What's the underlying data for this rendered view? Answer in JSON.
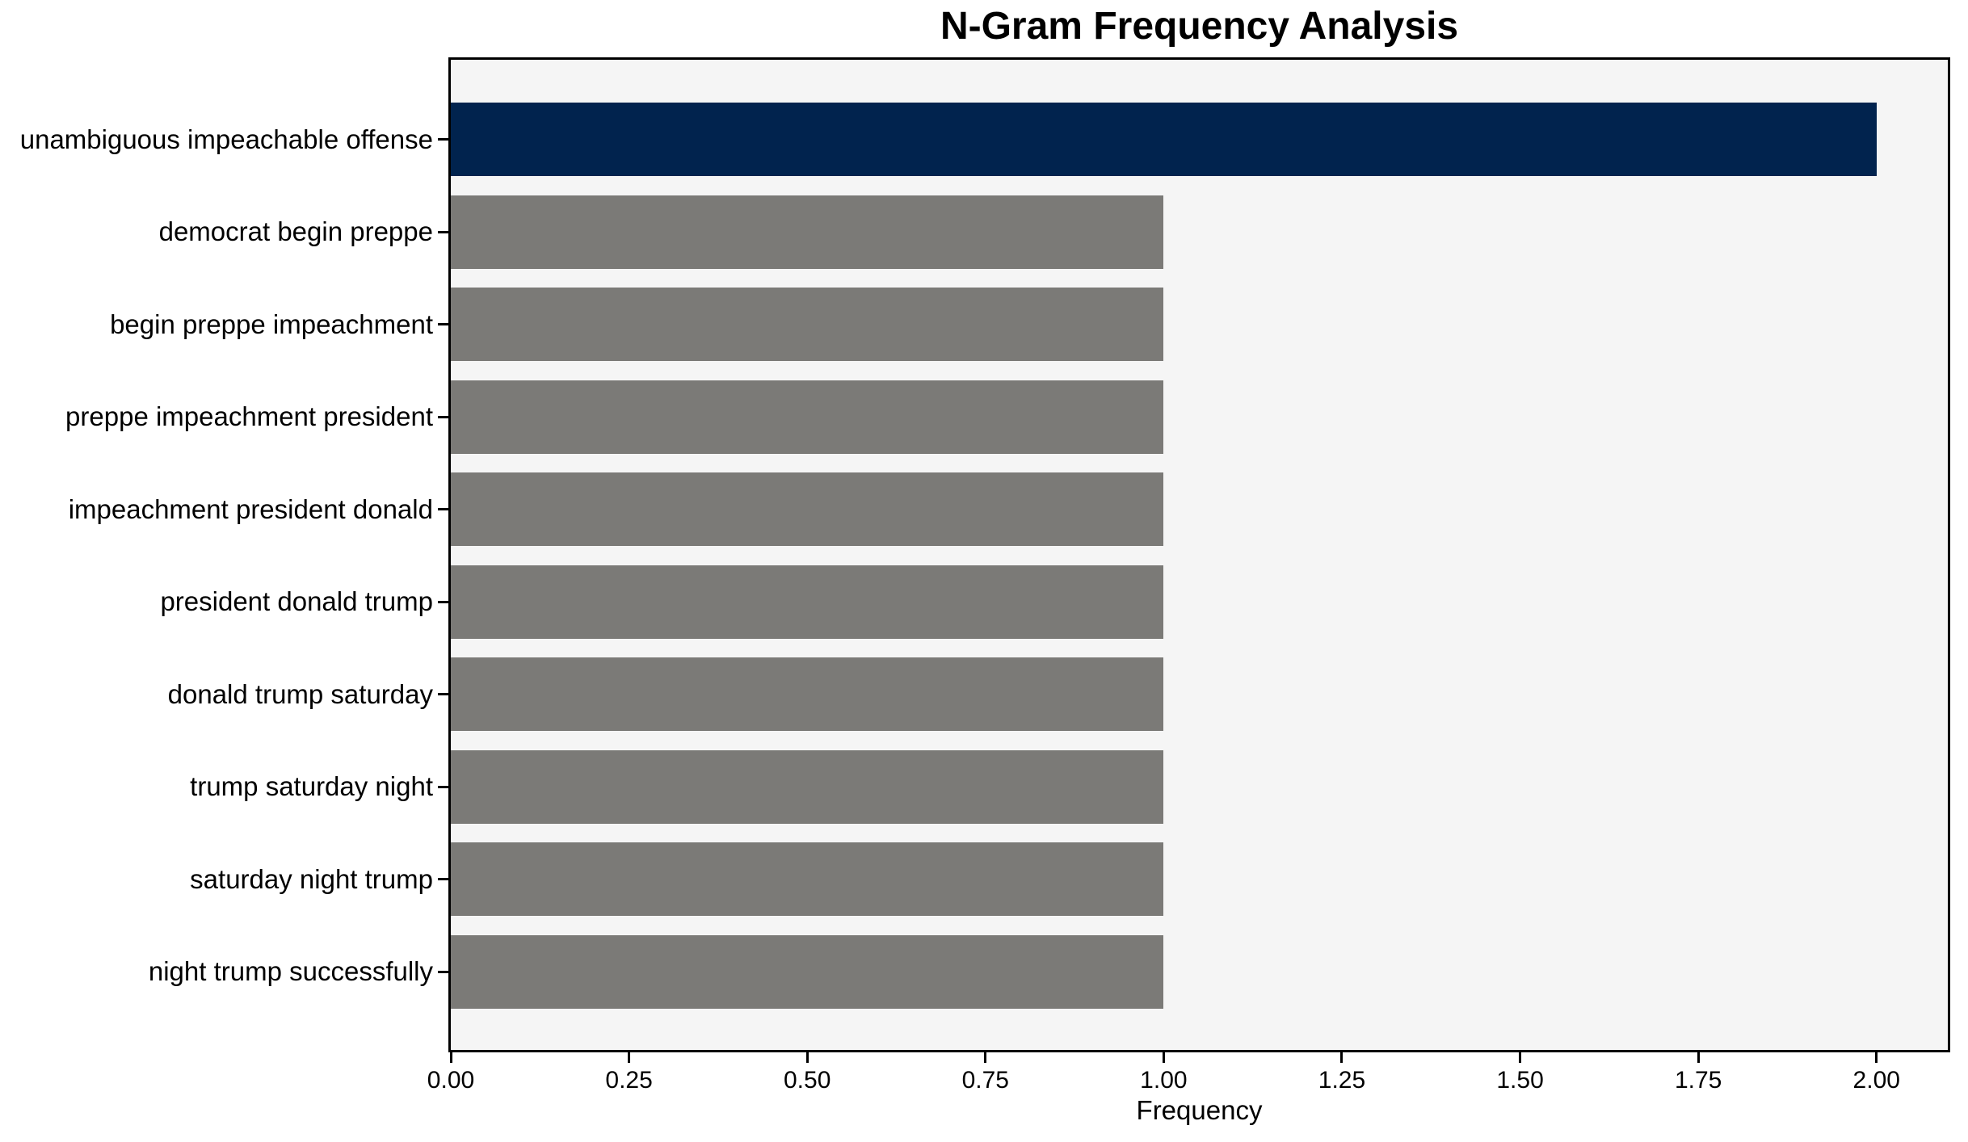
{
  "chart_data": {
    "type": "bar",
    "orientation": "horizontal",
    "title": "N-Gram Frequency Analysis",
    "xlabel": "Frequency",
    "ylabel": "",
    "categories": [
      "unambiguous impeachable offense",
      "democrat begin preppe",
      "begin preppe impeachment",
      "preppe impeachment president",
      "impeachment president donald",
      "president donald trump",
      "donald trump saturday",
      "trump saturday night",
      "saturday night trump",
      "night trump successfully"
    ],
    "values": [
      2,
      1,
      1,
      1,
      1,
      1,
      1,
      1,
      1,
      1
    ],
    "bar_colors": [
      "#01234e",
      "#7b7a77",
      "#7b7a77",
      "#7b7a77",
      "#7b7a77",
      "#7b7a77",
      "#7b7a77",
      "#7b7a77",
      "#7b7a77",
      "#7b7a77"
    ],
    "highlight_color": "#01234e",
    "default_color": "#7b7a77",
    "xlim": [
      0,
      2.1
    ],
    "xticks": [
      0,
      0.25,
      0.5,
      0.75,
      1.0,
      1.25,
      1.5,
      1.75,
      2.0
    ],
    "xtick_labels": [
      "0.00",
      "0.25",
      "0.50",
      "0.75",
      "1.00",
      "1.25",
      "1.50",
      "1.75",
      "2.00"
    ],
    "grid": false,
    "legend": "none",
    "plot_background": "#f5f5f5",
    "figure_background": "#ffffff",
    "spine_color": "#000000"
  }
}
